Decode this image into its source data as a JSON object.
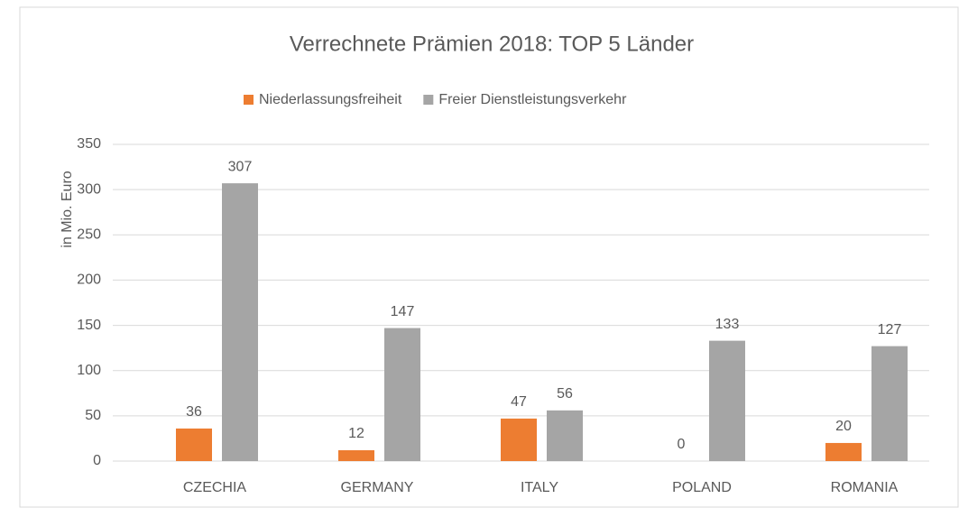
{
  "chart_data": {
    "type": "bar",
    "title": "Verrechnete Prämien 2018: TOP 5 Länder",
    "ylabel": "in Mio. Euro",
    "categories": [
      "CZECHIA",
      "GERMANY",
      "ITALY",
      "POLAND",
      "ROMANIA"
    ],
    "series": [
      {
        "name": "Niederlassungsfreiheit",
        "color": "#ed7d31",
        "values": [
          36,
          12,
          47,
          0,
          20
        ]
      },
      {
        "name": "Freier Dienstleistungsverkehr",
        "color": "#a5a5a5",
        "values": [
          307,
          147,
          56,
          133,
          127
        ]
      }
    ],
    "ylim": [
      0,
      350
    ],
    "yticks": [
      0,
      50,
      100,
      150,
      200,
      250,
      300,
      350
    ],
    "grid": true,
    "legend": "top"
  }
}
